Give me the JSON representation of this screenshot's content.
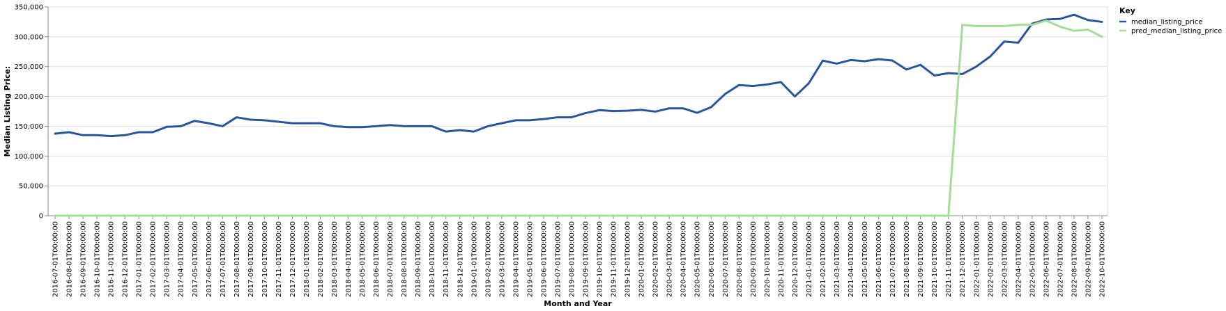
{
  "chart_data": {
    "type": "line",
    "xlabel": "Month and Year",
    "ylabel": "Median Listing Price:",
    "ylim": [
      0,
      350000
    ],
    "y_ticks": [
      "0",
      "50,000",
      "100,000",
      "150,000",
      "200,000",
      "250,000",
      "300,000",
      "350,000"
    ],
    "y_tick_values": [
      0,
      50000,
      100000,
      150000,
      200000,
      250000,
      300000,
      350000
    ],
    "grid": true,
    "legend": {
      "title": "Key",
      "placement": "top-right"
    },
    "x": [
      "2016-07-01T00:00:00",
      "2016-08-01T00:00:00",
      "2016-09-01T00:00:00",
      "2016-10-01T00:00:00",
      "2016-11-01T00:00:00",
      "2016-12-01T00:00:00",
      "2017-01-01T00:00:00",
      "2017-02-01T00:00:00",
      "2017-03-01T00:00:00",
      "2017-04-01T00:00:00",
      "2017-05-01T00:00:00",
      "2017-06-01T00:00:00",
      "2017-07-01T00:00:00",
      "2017-08-01T00:00:00",
      "2017-09-01T00:00:00",
      "2017-10-01T00:00:00",
      "2017-11-01T00:00:00",
      "2017-12-01T00:00:00",
      "2018-01-01T00:00:00",
      "2018-02-01T00:00:00",
      "2018-03-01T00:00:00",
      "2018-04-01T00:00:00",
      "2018-05-01T00:00:00",
      "2018-06-01T00:00:00",
      "2018-07-01T00:00:00",
      "2018-08-01T00:00:00",
      "2018-09-01T00:00:00",
      "2018-10-01T00:00:00",
      "2018-11-01T00:00:00",
      "2018-12-01T00:00:00",
      "2019-01-01T00:00:00",
      "2019-02-01T00:00:00",
      "2019-03-01T00:00:00",
      "2019-04-01T00:00:00",
      "2019-05-01T00:00:00",
      "2019-06-01T00:00:00",
      "2019-07-01T00:00:00",
      "2019-08-01T00:00:00",
      "2019-09-01T00:00:00",
      "2019-10-01T00:00:00",
      "2019-11-01T00:00:00",
      "2019-12-01T00:00:00",
      "2020-01-01T00:00:00",
      "2020-02-01T00:00:00",
      "2020-03-01T00:00:00",
      "2020-04-01T00:00:00",
      "2020-05-01T00:00:00",
      "2020-06-01T00:00:00",
      "2020-07-01T00:00:00",
      "2020-08-01T00:00:00",
      "2020-09-01T00:00:00",
      "2020-10-01T00:00:00",
      "2020-11-01T00:00:00",
      "2020-12-01T00:00:00",
      "2021-01-01T00:00:00",
      "2021-02-01T00:00:00",
      "2021-03-01T00:00:00",
      "2021-04-01T00:00:00",
      "2021-05-01T00:00:00",
      "2021-06-01T00:00:00",
      "2021-07-01T00:00:00",
      "2021-08-01T00:00:00",
      "2021-09-01T00:00:00",
      "2021-10-01T00:00:00",
      "2021-11-01T00:00:00",
      "2021-12-01T00:00:00",
      "2022-01-01T00:00:00",
      "2022-02-01T00:00:00",
      "2022-03-01T00:00:00",
      "2022-04-01T00:00:00",
      "2022-05-01T00:00:00",
      "2022-06-01T00:00:00",
      "2022-07-01T00:00:00",
      "2022-08-01T00:00:00",
      "2022-09-01T00:00:00",
      "2022-10-01T00:00:00"
    ],
    "series": [
      {
        "name": "median_listing_price",
        "color": "#2a5599",
        "values": [
          137500,
          140000,
          135000,
          135000,
          133500,
          135000,
          140000,
          140000,
          149000,
          150000,
          159000,
          155000,
          150000,
          165000,
          161000,
          160000,
          157500,
          155000,
          155000,
          155000,
          150000,
          148500,
          148500,
          150000,
          152000,
          150000,
          150000,
          150000,
          141000,
          143500,
          141000,
          150000,
          155000,
          160000,
          160000,
          162000,
          165000,
          165000,
          172000,
          177000,
          175500,
          176000,
          177500,
          174500,
          180000,
          180000,
          172500,
          182000,
          204000,
          219000,
          217500,
          220000,
          224000,
          200000,
          222000,
          260000,
          255000,
          261000,
          259000,
          262500,
          260000,
          245000,
          253000,
          235000,
          239000,
          237500,
          250000,
          267000,
          292000,
          290000,
          322000,
          329000,
          330000,
          337000,
          328000,
          325000
        ]
      },
      {
        "name": "pred_median_listing_price",
        "color": "#a4dc9a",
        "values": [
          0,
          0,
          0,
          0,
          0,
          0,
          0,
          0,
          0,
          0,
          0,
          0,
          0,
          0,
          0,
          0,
          0,
          0,
          0,
          0,
          0,
          0,
          0,
          0,
          0,
          0,
          0,
          0,
          0,
          0,
          0,
          0,
          0,
          0,
          0,
          0,
          0,
          0,
          0,
          0,
          0,
          0,
          0,
          0,
          0,
          0,
          0,
          0,
          0,
          0,
          0,
          0,
          0,
          0,
          0,
          0,
          0,
          0,
          0,
          0,
          0,
          0,
          0,
          0,
          0,
          320000,
          318000,
          318000,
          318000,
          320000,
          320000,
          327000,
          317000,
          310000,
          312000,
          300000
        ]
      }
    ]
  }
}
